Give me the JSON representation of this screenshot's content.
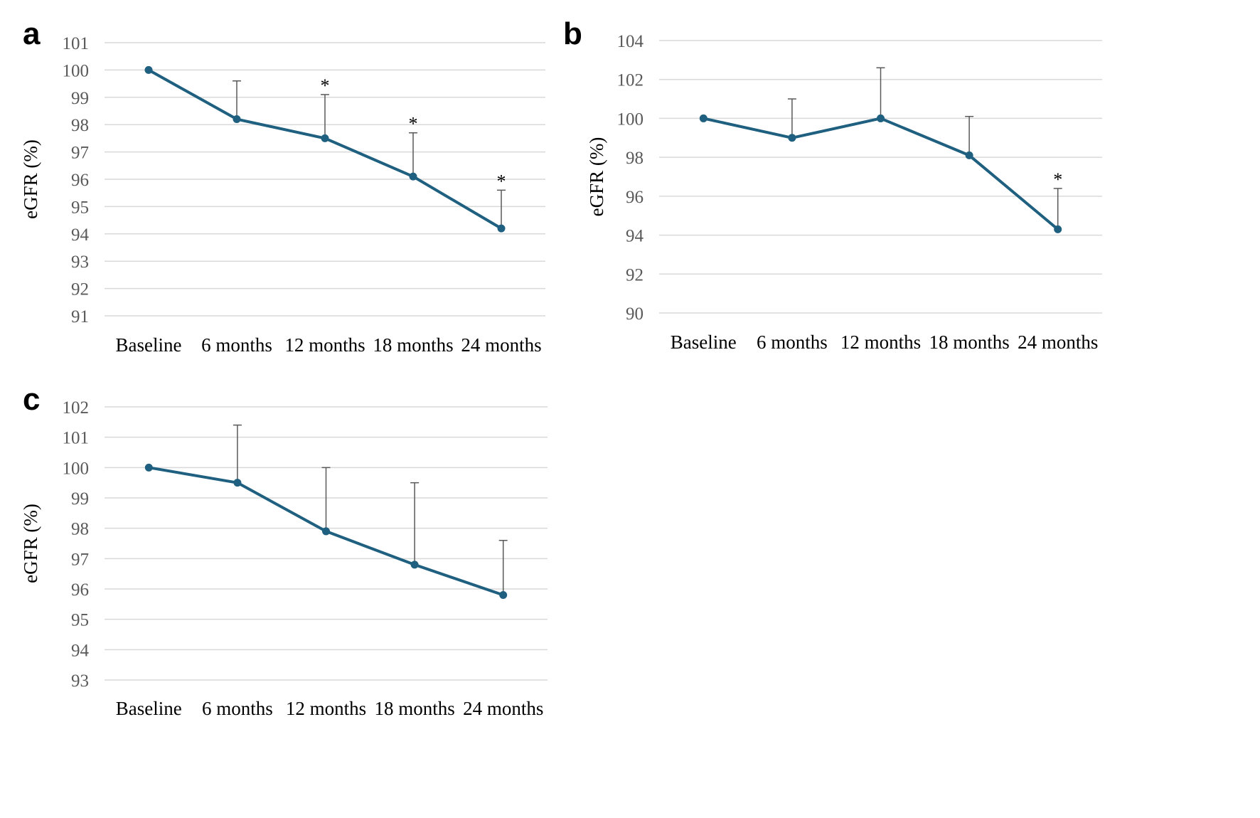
{
  "chart_data": [
    {
      "type": "line",
      "panel_label": "a",
      "categories": [
        "Baseline",
        "6 months",
        "12 months",
        "18 months",
        "24 months"
      ],
      "series": [
        {
          "values": [
            100,
            98.2,
            97.5,
            96.1,
            94.2
          ],
          "error_upper": [
            0,
            1.4,
            1.6,
            1.6,
            1.4
          ],
          "significance": [
            "",
            "",
            "*",
            "*",
            "*"
          ]
        }
      ],
      "ylabel": "eGFR (%)",
      "xlabel": "",
      "ylim": [
        91,
        101
      ],
      "yticks": [
        91,
        92,
        93,
        94,
        95,
        96,
        97,
        98,
        99,
        100,
        101
      ],
      "grid": true,
      "color": "#1f5f7f"
    },
    {
      "type": "line",
      "panel_label": "b",
      "categories": [
        "Baseline",
        "6 months",
        "12 months",
        "18 months",
        "24 months"
      ],
      "series": [
        {
          "values": [
            100,
            99,
            100,
            98.1,
            94.3
          ],
          "error_upper": [
            0,
            2.0,
            2.6,
            2.0,
            2.1
          ],
          "significance": [
            "",
            "",
            "",
            "",
            "*"
          ]
        }
      ],
      "ylabel": "eGFR (%)",
      "xlabel": "",
      "ylim": [
        90,
        104
      ],
      "yticks": [
        90,
        92,
        94,
        96,
        98,
        100,
        102,
        104
      ],
      "grid": true,
      "color": "#1f5f7f"
    },
    {
      "type": "line",
      "panel_label": "c",
      "categories": [
        "Baseline",
        "6 months",
        "12 months",
        "18 months",
        "24 months"
      ],
      "series": [
        {
          "values": [
            100,
            99.5,
            97.9,
            96.8,
            95.8
          ],
          "error_upper": [
            0,
            1.9,
            2.1,
            2.7,
            1.8
          ],
          "significance": [
            "",
            "",
            "",
            "",
            ""
          ]
        }
      ],
      "ylabel": "eGFR (%)",
      "xlabel": "",
      "ylim": [
        93,
        102
      ],
      "yticks": [
        93,
        94,
        95,
        96,
        97,
        98,
        99,
        100,
        101,
        102
      ],
      "grid": true,
      "color": "#1f5f7f"
    }
  ]
}
